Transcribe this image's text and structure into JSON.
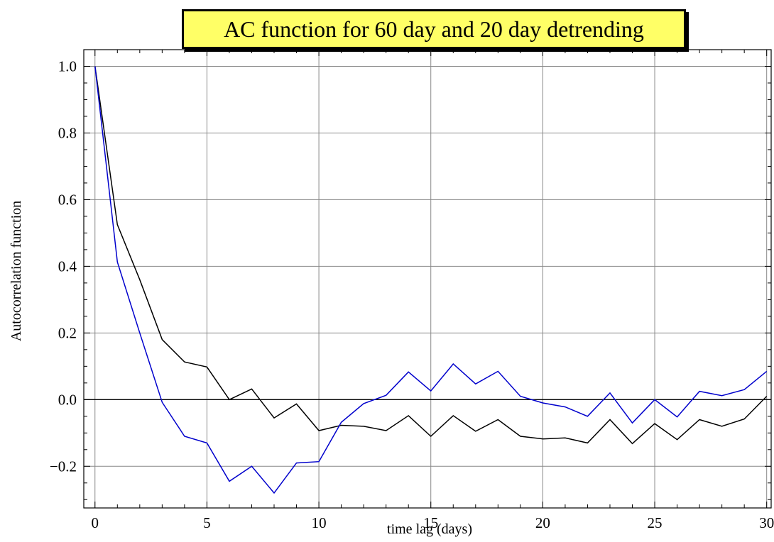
{
  "chart_data": {
    "type": "line",
    "title": "AC function for 60 day and 20 day detrending",
    "xlabel": "time lag (days)",
    "ylabel": "Autocorrelation function",
    "xlim": [
      -0.5,
      30.2
    ],
    "ylim": [
      -0.325,
      1.05
    ],
    "xticks": [
      0,
      5,
      10,
      15,
      20,
      25,
      30
    ],
    "xtick_labels": [
      "0",
      "5",
      "10",
      "15",
      "20",
      "25",
      "30"
    ],
    "yticks": [
      -0.2,
      0.0,
      0.2,
      0.4,
      0.6,
      0.8,
      1.0
    ],
    "ytick_labels": [
      "−0.2",
      "0.0",
      "0.2",
      "0.4",
      "0.6",
      "0.8",
      "1.0"
    ],
    "grid": true,
    "x": [
      0,
      1,
      2,
      3,
      4,
      5,
      6,
      7,
      8,
      9,
      10,
      11,
      12,
      13,
      14,
      15,
      16,
      17,
      18,
      19,
      20,
      21,
      22,
      23,
      24,
      25,
      26,
      27,
      28,
      29,
      30
    ],
    "series": [
      {
        "color": "#000000",
        "values": [
          1.0,
          0.525,
          0.36,
          0.18,
          0.113,
          0.098,
          0.0,
          0.032,
          -0.055,
          -0.013,
          -0.093,
          -0.077,
          -0.08,
          -0.093,
          -0.048,
          -0.11,
          -0.048,
          -0.095,
          -0.06,
          -0.11,
          -0.118,
          -0.115,
          -0.13,
          -0.06,
          -0.132,
          -0.072,
          -0.12,
          -0.06,
          -0.08,
          -0.058,
          0.01
        ]
      },
      {
        "color": "#0000cc",
        "values": [
          1.0,
          0.413,
          0.2,
          -0.008,
          -0.11,
          -0.13,
          -0.245,
          -0.2,
          -0.28,
          -0.19,
          -0.186,
          -0.068,
          -0.012,
          0.013,
          0.083,
          0.026,
          0.107,
          0.047,
          0.085,
          0.01,
          -0.01,
          -0.022,
          -0.05,
          0.02,
          -0.07,
          0.0,
          -0.052,
          0.025,
          0.012,
          0.03,
          0.085
        ]
      }
    ]
  }
}
